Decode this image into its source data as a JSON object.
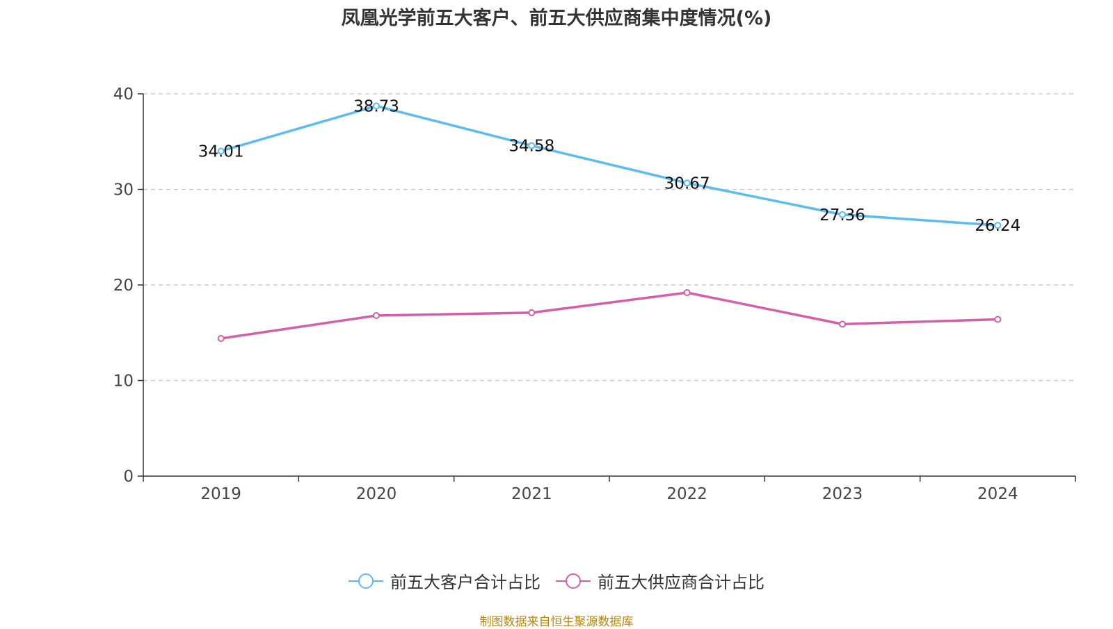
{
  "title": "凤凰光学前五大客户、前五大供应商集中度情况(%)",
  "source": "制图数据来自恒生聚源数据库",
  "colors": {
    "customers": "#5bbcf0",
    "suppliers": "#d45ea8",
    "grid": "#cccccc",
    "axis": "#333333"
  },
  "chart_data": {
    "type": "line",
    "title": "凤凰光学前五大客户、前五大供应商集中度情况(%)",
    "categories": [
      "2019",
      "2020",
      "2021",
      "2022",
      "2023",
      "2024"
    ],
    "ylim": [
      0,
      40
    ],
    "yticks": [
      0,
      10,
      20,
      30,
      40
    ],
    "series": [
      {
        "name": "前五大客户合计占比",
        "values": [
          34.01,
          38.73,
          34.58,
          30.67,
          27.36,
          26.24
        ],
        "labels": [
          "34.01",
          "38.73",
          "34.58",
          "30.67",
          "27.36",
          "26.24"
        ],
        "show_labels": true
      },
      {
        "name": "前五大供应商合计占比",
        "values": [
          14.4,
          16.8,
          17.1,
          19.2,
          15.9,
          16.4
        ],
        "show_labels": false
      }
    ]
  }
}
